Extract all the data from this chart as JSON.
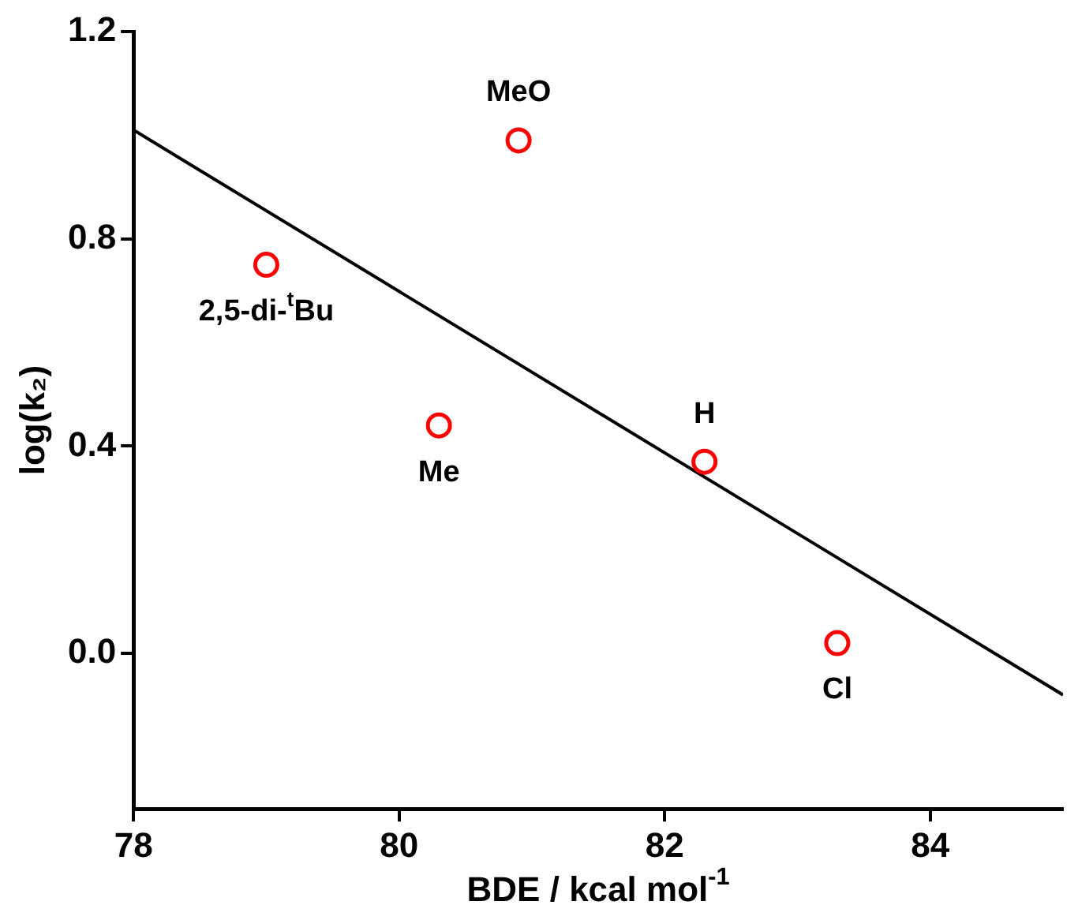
{
  "chart_data": {
    "type": "scatter",
    "xlabel": "BDE / kcal mol$^{-1}$",
    "ylabel": "log(k₂)",
    "xlim": [
      78,
      85
    ],
    "ylim": [
      -0.3,
      1.2
    ],
    "xticks": [
      78,
      80,
      82,
      84
    ],
    "yticks": [
      {
        "value": 0,
        "label": "0.0"
      },
      0.4,
      0.8,
      1.2
    ],
    "grid": false,
    "legend": false,
    "series": [
      {
        "type": "scatter",
        "color": "#ff0000",
        "marker": "circle",
        "x": [
          79.0,
          80.9,
          80.3,
          82.3,
          83.3
        ],
        "values": [
          0.75,
          0.99,
          0.44,
          0.37,
          0.02
        ]
      },
      {
        "type": "line",
        "color": "#000000",
        "marker": "none",
        "line_style": "solid",
        "x": [
          78,
          85
        ],
        "values": [
          1.01,
          -0.08
        ]
      }
    ],
    "annotations": [
      {
        "text": "2,5-di-$^{t}$Bu",
        "x": 79.0,
        "y": 0.75
      },
      {
        "text": "MeO",
        "x": 80.9,
        "y": 0.99
      },
      {
        "text": "Me",
        "x": 80.3,
        "y": 0.44
      },
      {
        "text": "H",
        "x": 82.3,
        "y": 0.37
      },
      {
        "text": "Cl",
        "x": 83.3,
        "y": 0.02
      }
    ]
  }
}
